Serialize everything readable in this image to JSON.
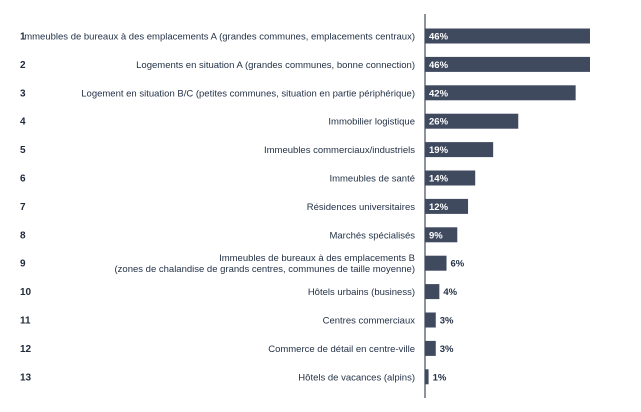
{
  "chart_data": {
    "type": "bar",
    "orientation": "horizontal",
    "value_unit": "%",
    "colors": {
      "bar": "#3f4a5f",
      "axis": "#3f4a5f",
      "text": "#243247"
    },
    "xlim": [
      0,
      46
    ],
    "grid": false,
    "legend": "none",
    "items": [
      {
        "rank": "1",
        "label_lines": [
          "Immeubles de bureaux à des emplacements A (grandes communes, emplacements centraux)"
        ],
        "value": 46,
        "value_label": "46%"
      },
      {
        "rank": "2",
        "label_lines": [
          "Logements en situation A (grandes communes, bonne connection)"
        ],
        "value": 46,
        "value_label": "46%"
      },
      {
        "rank": "3",
        "label_lines": [
          "Logement en situation B/C (petites communes, situation en partie périphérique)"
        ],
        "value": 42,
        "value_label": "42%"
      },
      {
        "rank": "4",
        "label_lines": [
          "Immobilier logistique"
        ],
        "value": 26,
        "value_label": "26%"
      },
      {
        "rank": "5",
        "label_lines": [
          "Immeubles commerciaux/industriels"
        ],
        "value": 19,
        "value_label": "19%"
      },
      {
        "rank": "6",
        "label_lines": [
          "Immeubles de santé"
        ],
        "value": 14,
        "value_label": "14%"
      },
      {
        "rank": "7",
        "label_lines": [
          "Résidences universitaires"
        ],
        "value": 12,
        "value_label": "12%"
      },
      {
        "rank": "8",
        "label_lines": [
          "Marchés spécialisés"
        ],
        "value": 9,
        "value_label": "9%"
      },
      {
        "rank": "9",
        "label_lines": [
          "Immeubles de bureaux à des emplacements B",
          "(zones de chalandise de grands centres, communes de taille moyenne)"
        ],
        "value": 6,
        "value_label": "6%"
      },
      {
        "rank": "10",
        "label_lines": [
          "Hôtels urbains (business)"
        ],
        "value": 4,
        "value_label": "4%"
      },
      {
        "rank": "11",
        "label_lines": [
          "Centres commerciaux"
        ],
        "value": 3,
        "value_label": "3%"
      },
      {
        "rank": "12",
        "label_lines": [
          "Commerce de détail en centre-ville"
        ],
        "value": 3,
        "value_label": "3%"
      },
      {
        "rank": "13",
        "label_lines": [
          "Hôtels de vacances (alpins)"
        ],
        "value": 1,
        "value_label": "1%"
      }
    ]
  }
}
